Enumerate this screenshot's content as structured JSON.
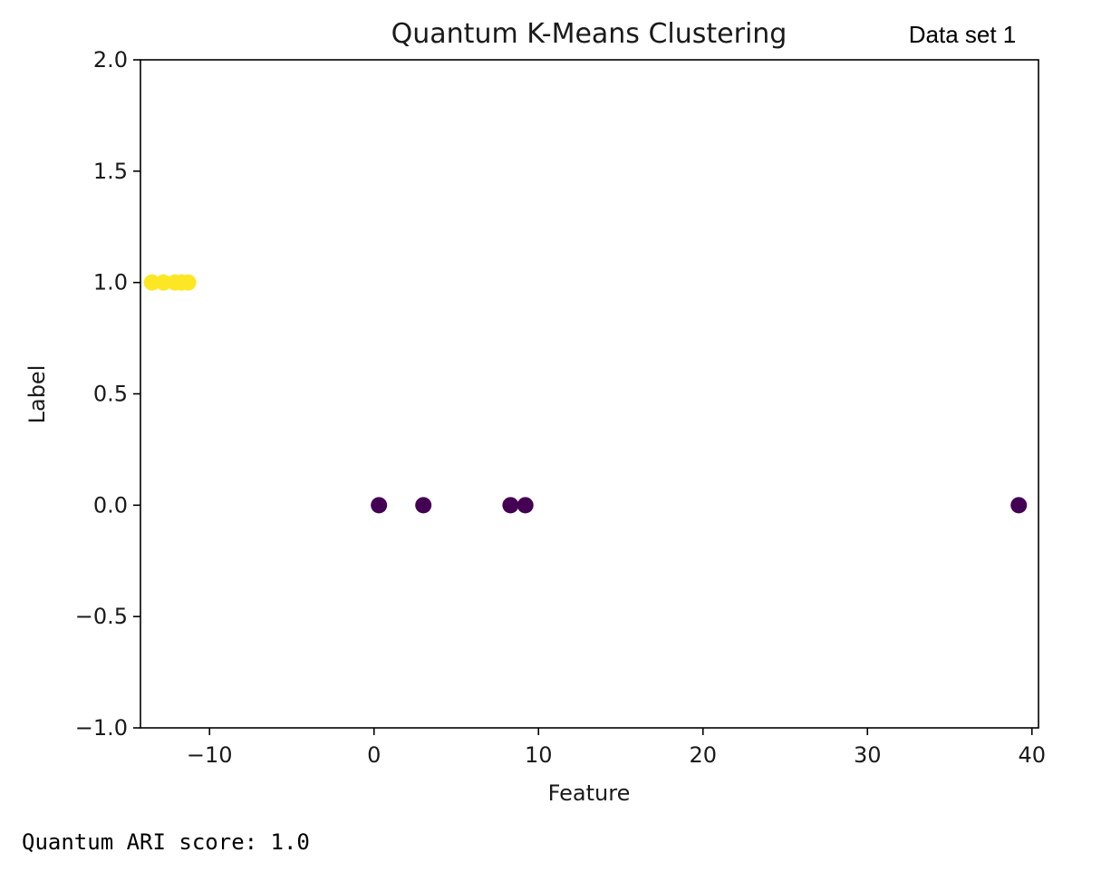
{
  "dataset_label": "Data set 1",
  "output": {
    "ari_text": "Quantum ARI score: 1.0"
  },
  "chart_data": {
    "type": "scatter",
    "title": "Quantum K-Means Clustering",
    "xlabel": "Feature",
    "ylabel": "Label",
    "xlim": [
      -14.2,
      40.4
    ],
    "ylim": [
      -1.0,
      2.0
    ],
    "x_ticks": [
      -10,
      0,
      10,
      20,
      30,
      40
    ],
    "x_tick_labels": [
      "−10",
      "0",
      "10",
      "20",
      "30",
      "40"
    ],
    "y_ticks": [
      2.0,
      1.5,
      1.0,
      0.5,
      0.0,
      -0.5,
      -1.0
    ],
    "y_tick_labels": [
      "2.0",
      "1.5",
      "1.0",
      "0.5",
      "0.0",
      "−0.5",
      "−1.0"
    ],
    "grid": false,
    "colors": {
      "cluster_0": "#440154",
      "cluster_1": "#fde725"
    },
    "points": [
      {
        "x": -13.5,
        "y": 1.0,
        "cluster": 1
      },
      {
        "x": -12.8,
        "y": 1.0,
        "cluster": 1
      },
      {
        "x": -12.1,
        "y": 1.0,
        "cluster": 1
      },
      {
        "x": -11.7,
        "y": 1.0,
        "cluster": 1
      },
      {
        "x": -11.3,
        "y": 1.0,
        "cluster": 1
      },
      {
        "x": 0.3,
        "y": 0.0,
        "cluster": 0
      },
      {
        "x": 3.0,
        "y": 0.0,
        "cluster": 0
      },
      {
        "x": 8.3,
        "y": 0.0,
        "cluster": 0
      },
      {
        "x": 9.2,
        "y": 0.0,
        "cluster": 0
      },
      {
        "x": 39.2,
        "y": 0.0,
        "cluster": 0
      }
    ]
  }
}
